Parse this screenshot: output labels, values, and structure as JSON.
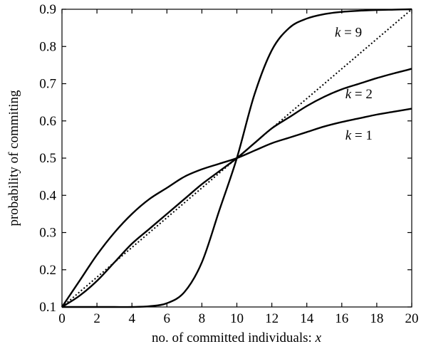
{
  "chart_data": {
    "type": "line",
    "xlabel": "no. of committed individuals: ",
    "xlabel_var": "x",
    "ylabel": "probability of commiting",
    "xlim": [
      0,
      20
    ],
    "ylim": [
      0.1,
      0.9
    ],
    "xticks": [
      0,
      2,
      4,
      6,
      8,
      10,
      12,
      14,
      16,
      18,
      20
    ],
    "yticks": [
      0.1,
      0.2,
      0.3,
      0.4,
      0.5,
      0.6,
      0.7,
      0.8,
      0.9
    ],
    "grid": false,
    "series": [
      {
        "style": "solid",
        "label": "k = 1",
        "x": [
          0,
          1,
          2,
          3,
          4,
          5,
          6,
          7,
          8,
          9,
          10,
          11,
          12,
          13,
          14,
          15,
          16,
          17,
          18,
          19,
          20
        ],
        "y": [
          0.1,
          0.17,
          0.24,
          0.3,
          0.35,
          0.39,
          0.42,
          0.45,
          0.47,
          0.485,
          0.5,
          0.52,
          0.54,
          0.555,
          0.57,
          0.585,
          0.597,
          0.607,
          0.617,
          0.625,
          0.633
        ]
      },
      {
        "style": "solid",
        "label": "k = 2",
        "x": [
          0,
          1,
          2,
          3,
          4,
          5,
          6,
          7,
          8,
          9,
          10,
          11,
          12,
          13,
          14,
          15,
          16,
          17,
          18,
          19,
          20
        ],
        "y": [
          0.1,
          0.13,
          0.17,
          0.22,
          0.27,
          0.31,
          0.35,
          0.39,
          0.43,
          0.465,
          0.5,
          0.54,
          0.58,
          0.61,
          0.64,
          0.665,
          0.685,
          0.7,
          0.715,
          0.728,
          0.74
        ]
      },
      {
        "style": "solid",
        "label": "k = 9",
        "x": [
          0,
          1,
          2,
          3,
          4,
          5,
          6,
          7,
          8,
          9,
          10,
          11,
          12,
          13,
          14,
          15,
          16,
          17,
          18,
          19,
          20
        ],
        "y": [
          0.1,
          0.1,
          0.1,
          0.1,
          0.1,
          0.102,
          0.11,
          0.14,
          0.22,
          0.36,
          0.5,
          0.67,
          0.79,
          0.85,
          0.875,
          0.887,
          0.893,
          0.896,
          0.898,
          0.899,
          0.9
        ]
      },
      {
        "style": "dotted",
        "x": [
          0,
          20
        ],
        "y": [
          0.1,
          0.9
        ]
      }
    ],
    "annotations": [
      {
        "var": "k",
        "rest": " = 9",
        "x": 15.6,
        "y": 0.826
      },
      {
        "var": "k",
        "rest": " = 2",
        "x": 16.2,
        "y": 0.661
      },
      {
        "var": "k",
        "rest": " = 1",
        "x": 16.2,
        "y": 0.55
      }
    ]
  }
}
